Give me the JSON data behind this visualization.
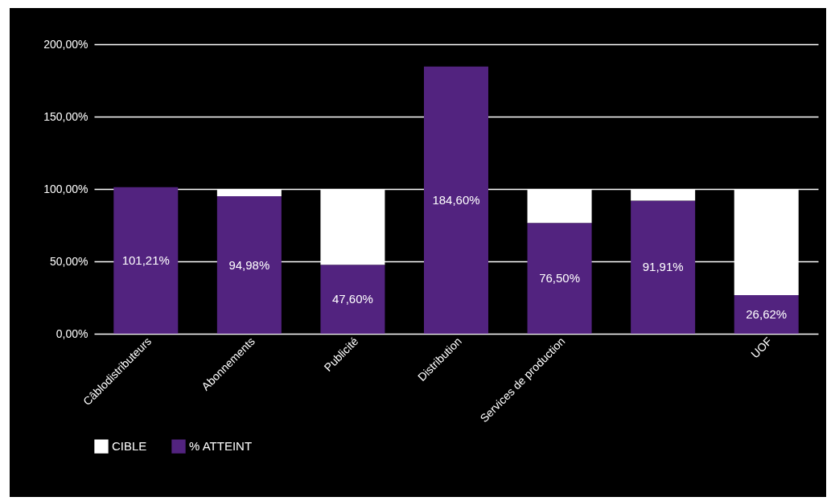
{
  "chart_data": {
    "type": "bar",
    "stacked": true,
    "categories": [
      "Câblodistributeurs",
      "Abonnements",
      "Publicité",
      "Distribution",
      "Services de production",
      null,
      "UOF"
    ],
    "series": [
      {
        "name": "% ATTEINT",
        "color": "#52237f",
        "values": [
          101.21,
          94.98,
          47.6,
          184.6,
          76.5,
          91.91,
          26.62
        ],
        "value_labels": [
          "101,21%",
          "94,98%",
          "47,60%",
          "184,60%",
          "76,50%",
          "91,91%",
          "26,62%"
        ]
      },
      {
        "name": "CIBLE",
        "color": "#ffffff",
        "values": [
          null,
          5.02,
          52.4,
          null,
          23.5,
          8.09,
          73.38
        ]
      }
    ],
    "ylim": [
      0,
      200
    ],
    "yticks": [
      {
        "value": 0,
        "label": "0,00%"
      },
      {
        "value": 50,
        "label": "50,00%"
      },
      {
        "value": 100,
        "label": "100,00%"
      },
      {
        "value": 150,
        "label": "150,00%"
      },
      {
        "value": 200,
        "label": "200,00%"
      }
    ],
    "grid": "y",
    "legend": "bottom"
  }
}
